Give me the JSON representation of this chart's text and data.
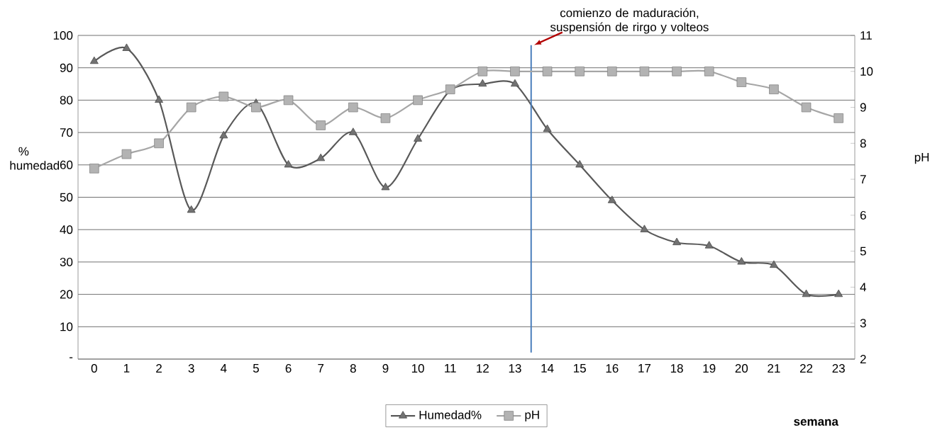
{
  "chart_data": {
    "type": "line",
    "xlabel": "semana",
    "ylabel": "% humedad",
    "y2label": "pH",
    "x": [
      0,
      1,
      2,
      3,
      4,
      5,
      6,
      7,
      8,
      9,
      10,
      11,
      12,
      13,
      14,
      15,
      16,
      17,
      18,
      19,
      20,
      21,
      22,
      23
    ],
    "xlim": [
      -0.5,
      23.5
    ],
    "xticks": [
      0,
      1,
      2,
      3,
      4,
      5,
      6,
      7,
      8,
      9,
      10,
      11,
      12,
      13,
      14,
      15,
      16,
      17,
      18,
      19,
      20,
      21,
      22,
      23
    ],
    "series": [
      {
        "name": "Humedad%",
        "color": "#595959",
        "marker": "triangle",
        "values": [
          92,
          96,
          80,
          46,
          69,
          79,
          60,
          62,
          70,
          53,
          68,
          83,
          85,
          85,
          71,
          60,
          49,
          40,
          36,
          35,
          30,
          29,
          20,
          20
        ]
      },
      {
        "name": "pH",
        "color": "#a6a6a6",
        "marker": "square",
        "axis": "y2",
        "values": [
          7.3,
          7.7,
          8.0,
          9.0,
          9.3,
          9.0,
          9.2,
          8.5,
          9.0,
          8.7,
          9.2,
          9.5,
          10,
          10,
          10,
          10,
          10,
          10,
          10,
          10,
          9.7,
          9.5,
          9.0,
          8.7
        ]
      }
    ],
    "ylim": [
      0,
      100
    ],
    "yticks": [
      {
        "value": 0,
        "label": "-"
      },
      10,
      20,
      30,
      40,
      50,
      60,
      70,
      80,
      90,
      100
    ],
    "y2lim": [
      2,
      11
    ],
    "y2ticks": [
      2,
      3,
      4,
      5,
      6,
      7,
      8,
      9,
      10,
      11
    ],
    "grid": "y",
    "legend": "bottom",
    "ref_lines": [
      {
        "axis": "x",
        "value": 13.5,
        "color": "#4a7ebb"
      }
    ],
    "annotations": [
      {
        "text": "comienzo de maduración, suspensión de rirgo y volteos",
        "x": 13.5,
        "y": 97
      }
    ]
  }
}
